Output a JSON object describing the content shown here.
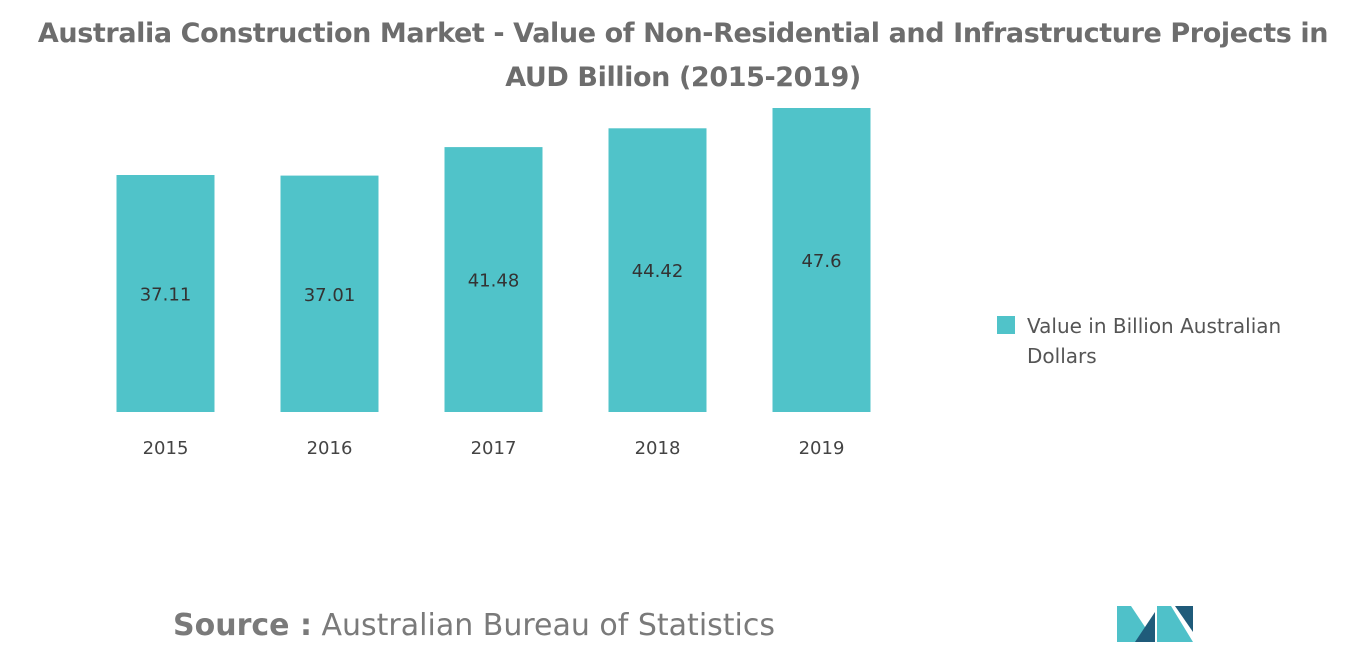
{
  "chart_data": {
    "type": "bar",
    "title": "Australia Construction Market - Value of Non-Residential and Infrastructure Projects in AUD Billion (2015-2019)",
    "categories": [
      "2015",
      "2016",
      "2017",
      "2018",
      "2019"
    ],
    "series": [
      {
        "name": "Value in Billion Australian Dollars",
        "values": [
          37.11,
          37.01,
          41.48,
          44.42,
          47.6
        ],
        "color": "#50c3c9"
      }
    ],
    "data_labels": [
      "37.11",
      "37.01",
      "41.48",
      "44.42",
      "47.6"
    ],
    "xlabel": "",
    "ylabel": "",
    "axis_visible": false,
    "grid": false,
    "legend_position": "right"
  },
  "source": {
    "label": "Source :",
    "text": "Australian Bureau of Statistics"
  },
  "colors": {
    "bar": "#50c3c9",
    "title": "#6d6d6d",
    "logo_dark": "#1f5b7a",
    "logo_light": "#4fc1c9"
  }
}
